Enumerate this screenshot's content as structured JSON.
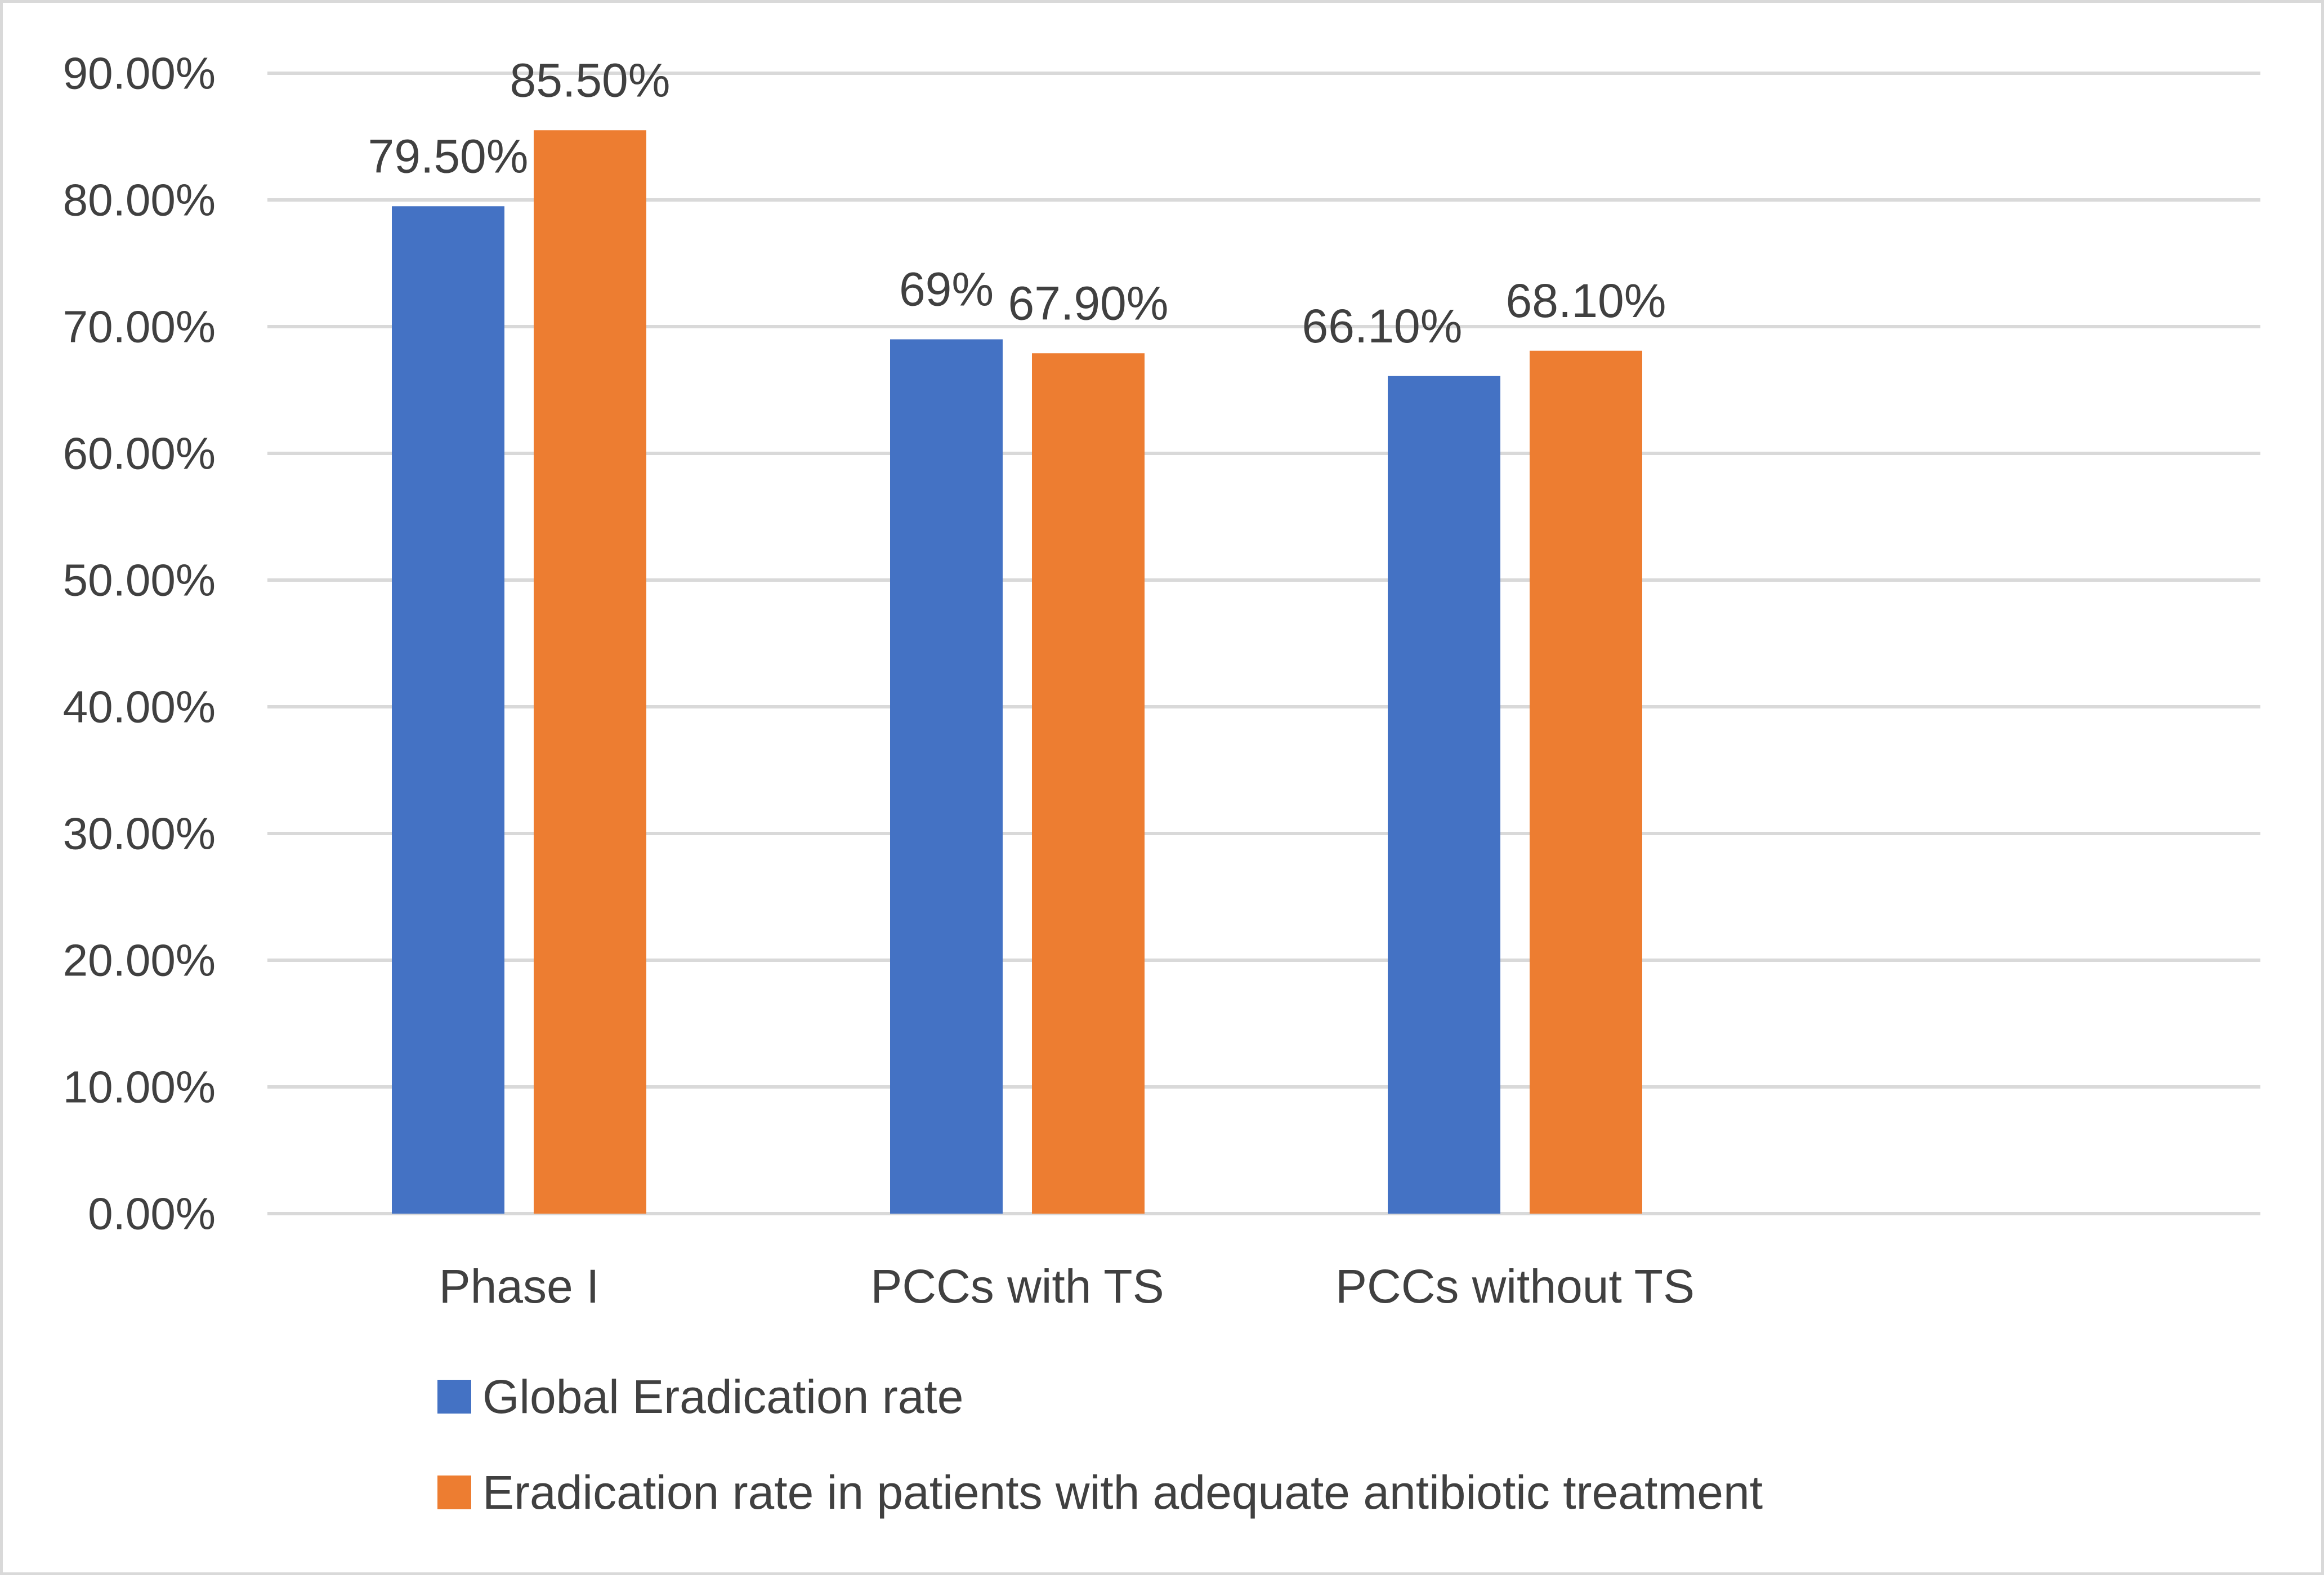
{
  "chart_data": {
    "type": "bar",
    "title": "",
    "xlabel": "",
    "ylabel": "",
    "categories": [
      "Phase I",
      "PCCs with TS",
      "PCCs without TS"
    ],
    "series": [
      {
        "name": "Global Eradication rate",
        "color": "#4472c4",
        "values": [
          79.5,
          69,
          66.1
        ],
        "labels": [
          "79.50%",
          "69%",
          "66.10%"
        ]
      },
      {
        "name": "Eradication rate in patients with adequate antibiotic treatment",
        "color": "#ed7d31",
        "values": [
          85.5,
          67.9,
          68.1
        ],
        "labels": [
          "85.50%",
          "67.90%",
          "68.10%"
        ]
      }
    ],
    "ylim": [
      0,
      90
    ],
    "yticks": [
      0,
      10,
      20,
      30,
      40,
      50,
      60,
      70,
      80,
      90
    ],
    "ytick_labels": [
      "0.00%",
      "10.00%",
      "20.00%",
      "30.00%",
      "40.00%",
      "50.00%",
      "60.00%",
      "70.00%",
      "80.00%",
      "90.00%"
    ],
    "grid": true,
    "legend_position": "bottom-left"
  }
}
